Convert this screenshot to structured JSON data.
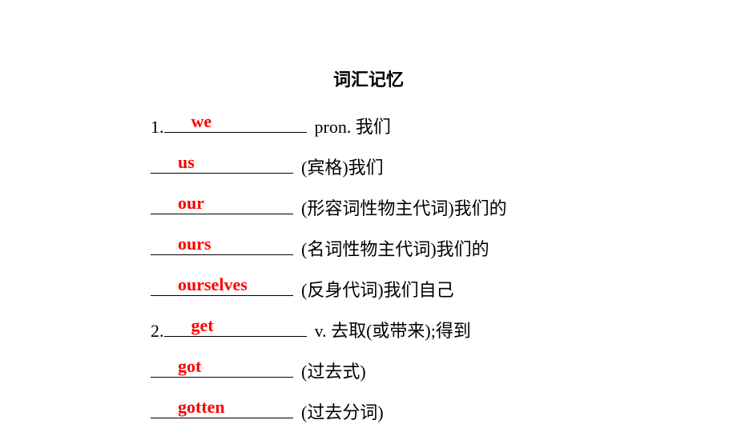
{
  "title": "词汇记忆",
  "title_fontsize": 22,
  "answer_color": "#ff0000",
  "text_color": "#000000",
  "background_color": "#ffffff",
  "blank_width": 178,
  "items": [
    {
      "num": "1.",
      "answer": "we",
      "definition": "pron. 我们"
    },
    {
      "num": "",
      "answer": "us",
      "definition": " (宾格)我们"
    },
    {
      "num": "",
      "answer": "our",
      "definition": " (形容词性物主代词)我们的"
    },
    {
      "num": "",
      "answer": "ours",
      "definition": " (名词性物主代词)我们的"
    },
    {
      "num": "",
      "answer": "ourselves",
      "definition": " (反身代词)我们自己"
    },
    {
      "num": "2. ",
      "answer": "get",
      "definition": "v. 去取(或带来);得到"
    },
    {
      "num": "",
      "answer": "got",
      "definition": " (过去式)"
    },
    {
      "num": "",
      "answer": "gotten",
      "definition": " (过去分词)"
    }
  ]
}
